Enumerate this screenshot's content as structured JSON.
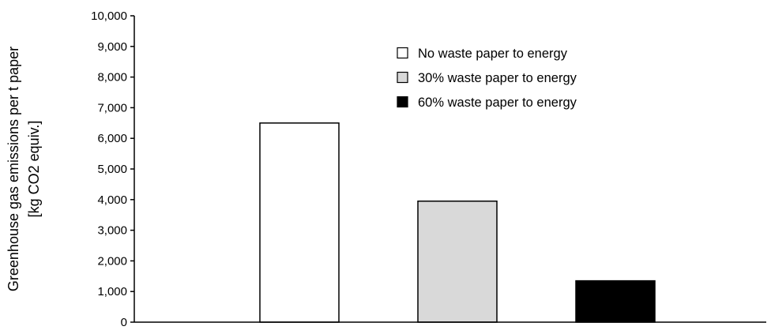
{
  "chart_data": {
    "type": "bar",
    "title": "",
    "xlabel": "",
    "ylabel": [
      "Greenhouse gas emissions per t paper",
      "[kg CO2 equiv.]"
    ],
    "ylim": [
      0,
      10000
    ],
    "yticks": [
      0,
      1000,
      2000,
      3000,
      4000,
      5000,
      6000,
      7000,
      8000,
      9000,
      10000
    ],
    "ytick_labels": [
      "0",
      "1,000",
      "2,000",
      "3,000",
      "4,000",
      "5,000",
      "6,000",
      "7,000",
      "8,000",
      "9,000",
      "10,000"
    ],
    "grid": false,
    "legend_position": "top-right",
    "series": [
      {
        "name": "No waste paper to energy",
        "value": 6500,
        "color": "#ffffff"
      },
      {
        "name": "30% waste paper to energy",
        "value": 3950,
        "color": "#d9d9d9"
      },
      {
        "name": "60% waste paper to energy",
        "value": 1350,
        "color": "#000000"
      }
    ]
  }
}
